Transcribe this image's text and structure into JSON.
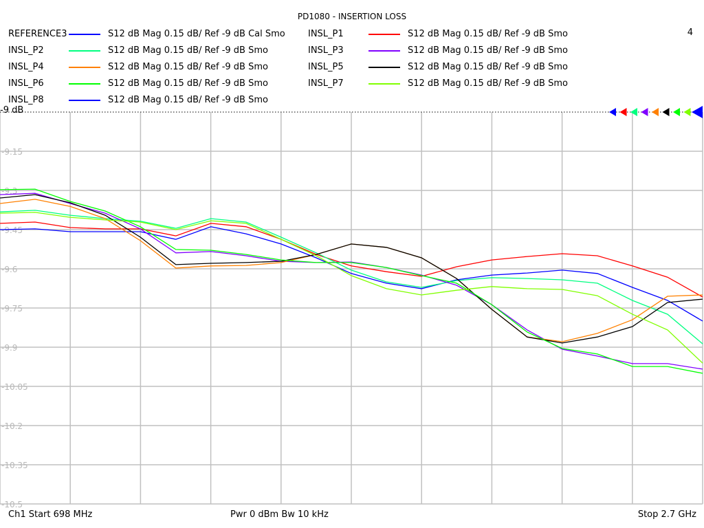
{
  "title": "PD1080 - INSERTION LOSS",
  "channel_number": "4",
  "legend": [
    {
      "name": "REFERENCE3",
      "color": "#0000ff",
      "desc": "S12  dB Mag  0.15 dB/ Ref -9 dB  Cal Smo"
    },
    {
      "name": "INSL_P1",
      "color": "#ff0000",
      "desc": "S12  dB Mag  0.15 dB/ Ref -9 dB  Smo"
    },
    {
      "name": "INSL_P2",
      "color": "#00ff80",
      "desc": "S12  dB Mag  0.15 dB/ Ref -9 dB  Smo"
    },
    {
      "name": "INSL_P3",
      "color": "#8000ff",
      "desc": "S12  dB Mag  0.15 dB/ Ref -9 dB  Smo"
    },
    {
      "name": "INSL_P4",
      "color": "#ff8000",
      "desc": "S12  dB Mag  0.15 dB/ Ref -9 dB  Smo"
    },
    {
      "name": "INSL_P5",
      "color": "#000000",
      "desc": "S12  dB Mag  0.15 dB/ Ref -9 dB  Smo"
    },
    {
      "name": "INSL_P6",
      "color": "#00ff00",
      "desc": "S12  dB Mag  0.15 dB/ Ref -9 dB  Smo"
    },
    {
      "name": "INSL_P7",
      "color": "#80ff00",
      "desc": "S12  dB Mag  0.15 dB/ Ref -9 dB  Smo"
    },
    {
      "name": "INSL_P8",
      "color": "#0000ff",
      "desc": "S12  dB Mag  0.15 dB/ Ref -9 dB  Smo"
    }
  ],
  "ref_label": "-9 dB",
  "footer": {
    "start": "Ch1  Start  698 MHz",
    "mid": "Pwr  0 dBm  Bw  10 kHz",
    "stop": "Stop  2.7 GHz"
  },
  "chart_data": {
    "type": "line",
    "title": "PD1080 - INSERTION LOSS",
    "xlim": [
      698,
      2700
    ],
    "ylim": [
      -10.5,
      -9
    ],
    "yticks": [
      "-9",
      "-9.15",
      "-9.3",
      "-9.45",
      "-9.6",
      "-9.75",
      "-9.9",
      "-10.05",
      "-10.2",
      "-10.35",
      "-10.5"
    ],
    "ytick_values": [
      -9,
      -9.15,
      -9.3,
      -9.45,
      -9.6,
      -9.75,
      -9.9,
      -10.05,
      -10.2,
      -10.35,
      -10.5
    ],
    "x_divisions": 10,
    "grid": true,
    "marker_order": [
      "#0000ff",
      "#ff0000",
      "#00ff80",
      "#8000ff",
      "#ff8000",
      "#000000",
      "#00ff00",
      "#80ff00",
      "#0000ff"
    ],
    "x": [
      698,
      798,
      898,
      998,
      1098,
      1199,
      1299,
      1399,
      1499,
      1599,
      1699,
      1799,
      1899,
      1999,
      2099,
      2200,
      2300,
      2400,
      2500,
      2600,
      2700
    ],
    "series": [
      {
        "name": "INSL_P8",
        "color": "#0000ff",
        "values": [
          -9.45,
          -9.447,
          -9.458,
          -9.458,
          -9.458,
          -9.487,
          -9.439,
          -9.466,
          -9.505,
          -9.558,
          -9.618,
          -9.655,
          -9.676,
          -9.642,
          -9.624,
          -9.616,
          -9.605,
          -9.618,
          -9.671,
          -9.721,
          -9.8
        ]
      },
      {
        "name": "INSL_P1",
        "color": "#ff0000",
        "values": [
          -9.426,
          -9.421,
          -9.442,
          -9.447,
          -9.447,
          -9.474,
          -9.426,
          -9.439,
          -9.487,
          -9.545,
          -9.589,
          -9.611,
          -9.629,
          -9.592,
          -9.566,
          -9.553,
          -9.542,
          -9.55,
          -9.589,
          -9.632,
          -9.708
        ]
      },
      {
        "name": "INSL_P2",
        "color": "#00ff80",
        "values": [
          -9.382,
          -9.376,
          -9.395,
          -9.408,
          -9.418,
          -9.445,
          -9.408,
          -9.421,
          -9.479,
          -9.539,
          -9.605,
          -9.65,
          -9.671,
          -9.645,
          -9.634,
          -9.637,
          -9.642,
          -9.655,
          -9.721,
          -9.774,
          -9.887
        ]
      },
      {
        "name": "INSL_P3",
        "color": "#8000ff",
        "values": [
          -9.316,
          -9.311,
          -9.35,
          -9.387,
          -9.447,
          -9.539,
          -9.534,
          -9.55,
          -9.571,
          -9.576,
          -9.574,
          -9.595,
          -9.624,
          -9.663,
          -9.737,
          -9.834,
          -9.908,
          -9.934,
          -9.963,
          -9.963,
          -9.984
        ]
      },
      {
        "name": "INSL_P4",
        "color": "#ff8000",
        "values": [
          -9.35,
          -9.334,
          -9.361,
          -9.408,
          -9.492,
          -9.597,
          -9.589,
          -9.587,
          -9.576,
          -9.545,
          -9.505,
          -9.518,
          -9.558,
          -9.637,
          -9.755,
          -9.861,
          -9.879,
          -9.847,
          -9.795,
          -9.705,
          -9.7
        ]
      },
      {
        "name": "INSL_P5",
        "color": "#000000",
        "values": [
          -9.329,
          -9.316,
          -9.347,
          -9.395,
          -9.479,
          -9.584,
          -9.579,
          -9.576,
          -9.571,
          -9.545,
          -9.505,
          -9.518,
          -9.558,
          -9.637,
          -9.755,
          -9.861,
          -9.884,
          -9.861,
          -9.821,
          -9.729,
          -9.716
        ]
      },
      {
        "name": "INSL_P6",
        "color": "#00ff00",
        "values": [
          -9.297,
          -9.295,
          -9.342,
          -9.379,
          -9.439,
          -9.526,
          -9.529,
          -9.545,
          -9.566,
          -9.576,
          -9.576,
          -9.595,
          -9.626,
          -9.655,
          -9.737,
          -9.842,
          -9.905,
          -9.926,
          -9.974,
          -9.974,
          -10.0
        ]
      },
      {
        "name": "INSL_P7",
        "color": "#80ff00",
        "values": [
          -9.387,
          -9.384,
          -9.403,
          -9.413,
          -9.421,
          -9.45,
          -9.416,
          -9.426,
          -9.487,
          -9.55,
          -9.626,
          -9.676,
          -9.7,
          -9.682,
          -9.668,
          -9.676,
          -9.679,
          -9.703,
          -9.774,
          -9.834,
          -9.961
        ]
      }
    ]
  }
}
